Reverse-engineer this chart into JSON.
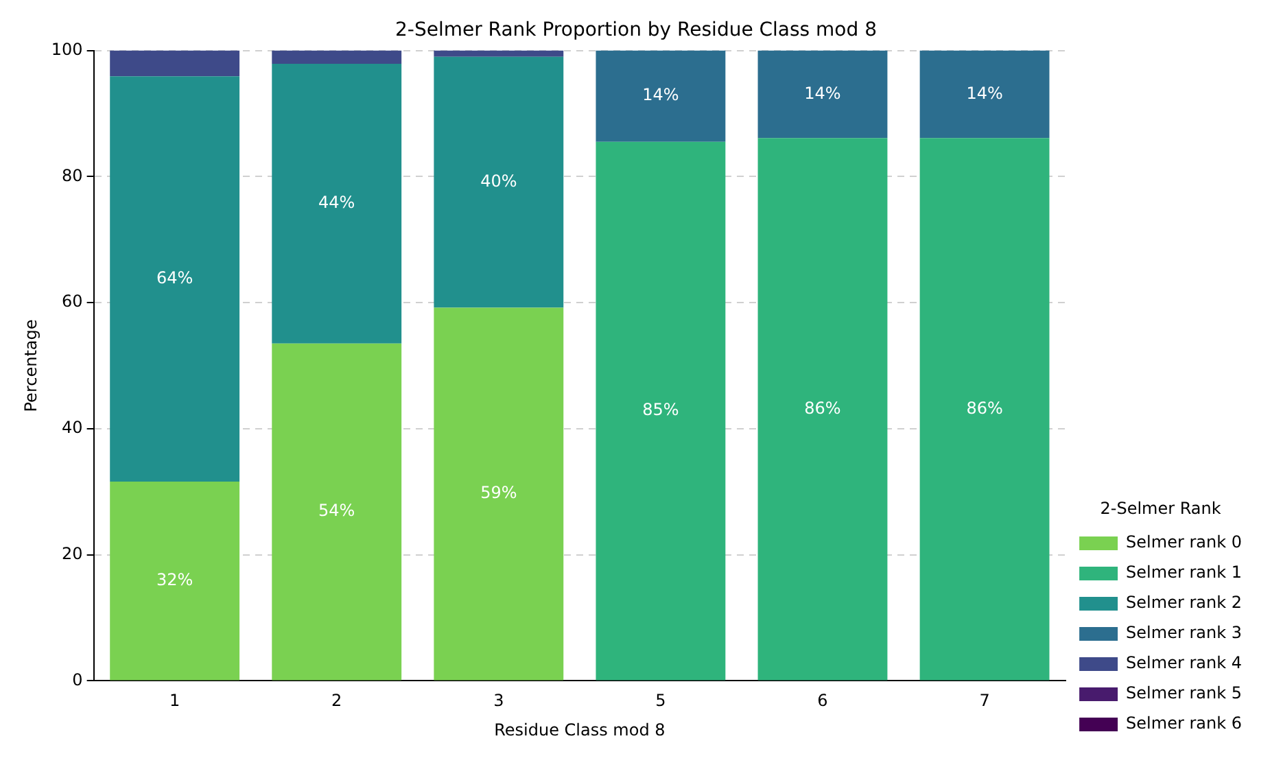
{
  "chart_data": {
    "type": "bar",
    "title": "2-Selmer Rank Proportion by Residue Class mod 8",
    "xlabel": "Residue Class mod 8",
    "ylabel": "Percentage",
    "legend_title": "2-Selmer Rank",
    "categories": [
      "1",
      "2",
      "3",
      "5",
      "6",
      "7"
    ],
    "stacked": true,
    "ylim": [
      0,
      100
    ],
    "yticks": [
      0,
      20,
      40,
      60,
      80,
      100
    ],
    "grid": "y",
    "legend": "bottom right",
    "series": [
      {
        "name": "Selmer rank 0",
        "color": "#7ad151",
        "values": [
          31.6,
          53.5,
          59.2,
          0,
          0,
          0
        ],
        "value_labels": [
          "32%",
          "54%",
          "59%",
          null,
          null,
          null
        ]
      },
      {
        "name": "Selmer rank 1",
        "color": "#2fb47c",
        "values": [
          0,
          0,
          0,
          85.5,
          86.1,
          86.1
        ],
        "value_labels": [
          null,
          null,
          null,
          "85%",
          "86%",
          "86%"
        ]
      },
      {
        "name": "Selmer rank 2",
        "color": "#21908d",
        "values": [
          64.3,
          44.4,
          39.8,
          0,
          0,
          0
        ],
        "value_labels": [
          "64%",
          "44%",
          "40%",
          null,
          null,
          null
        ]
      },
      {
        "name": "Selmer rank 3",
        "color": "#2c6e8f",
        "values": [
          0,
          0,
          0,
          14.5,
          13.9,
          13.9
        ],
        "value_labels": [
          null,
          null,
          null,
          "14%",
          "14%",
          "14%"
        ]
      },
      {
        "name": "Selmer rank 4",
        "color": "#3e4a89",
        "values": [
          4.1,
          2.1,
          1.0,
          0,
          0,
          0
        ]
      },
      {
        "name": "Selmer rank 5",
        "color": "#481b6d",
        "values": [
          0,
          0,
          0,
          0,
          0,
          0
        ]
      },
      {
        "name": "Selmer rank 6",
        "color": "#440154",
        "values": [
          0,
          0,
          0,
          0,
          0,
          0
        ]
      }
    ]
  }
}
